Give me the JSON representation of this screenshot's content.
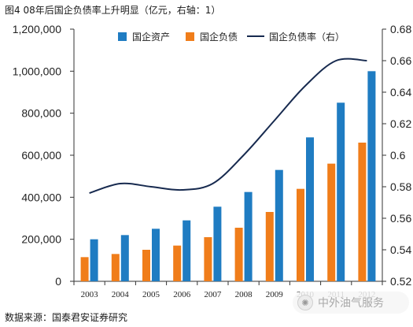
{
  "title": "图4 08年后国企负债率上升明显（亿元，右轴：1）",
  "source": "数据来源：国泰君安证券研究",
  "watermark": {
    "text": "中外油气服务",
    "icon": "globe-icon"
  },
  "colors": {
    "assets": "#1f7cc2",
    "debt": "#f07d1a",
    "ratio": "#172a4f"
  },
  "chart_data": {
    "type": "bar",
    "categories": [
      "2003",
      "2004",
      "2005",
      "2006",
      "2007",
      "2008",
      "2009",
      "2010",
      "2011",
      "2012"
    ],
    "series": [
      {
        "name": "国企资产",
        "type": "bar",
        "axis": "left",
        "values": [
          200000,
          220000,
          250000,
          290000,
          355000,
          425000,
          530000,
          685000,
          850000,
          1000000
        ]
      },
      {
        "name": "国企负债",
        "type": "bar",
        "axis": "left",
        "values": [
          115000,
          130000,
          150000,
          170000,
          210000,
          255000,
          330000,
          440000,
          560000,
          660000
        ]
      },
      {
        "name": "国企负债率（右）",
        "type": "line",
        "axis": "right",
        "values": [
          0.576,
          0.582,
          0.58,
          0.578,
          0.582,
          0.6,
          0.622,
          0.644,
          0.66,
          0.66
        ]
      }
    ],
    "y_left": {
      "min": 0,
      "max": 1200000,
      "ticks": [
        0,
        200000,
        400000,
        600000,
        800000,
        1000000,
        1200000
      ],
      "tick_labels": [
        "0",
        "200,000",
        "400,000",
        "600,000",
        "800,000",
        "1,000,000",
        "1,200,000"
      ]
    },
    "y_right": {
      "min": 0.52,
      "max": 0.68,
      "ticks": [
        0.52,
        0.54,
        0.56,
        0.58,
        0.6,
        0.62,
        0.64,
        0.66,
        0.68
      ],
      "tick_labels": [
        "0.52",
        "0.54",
        "0.56",
        "0.58",
        "0.6",
        "0.62",
        "0.64",
        "0.66",
        "0.68"
      ]
    },
    "legend": {
      "position": "top-right",
      "items": [
        "国企资产",
        "国企负债",
        "国企负债率（右）"
      ]
    },
    "grid": false
  }
}
